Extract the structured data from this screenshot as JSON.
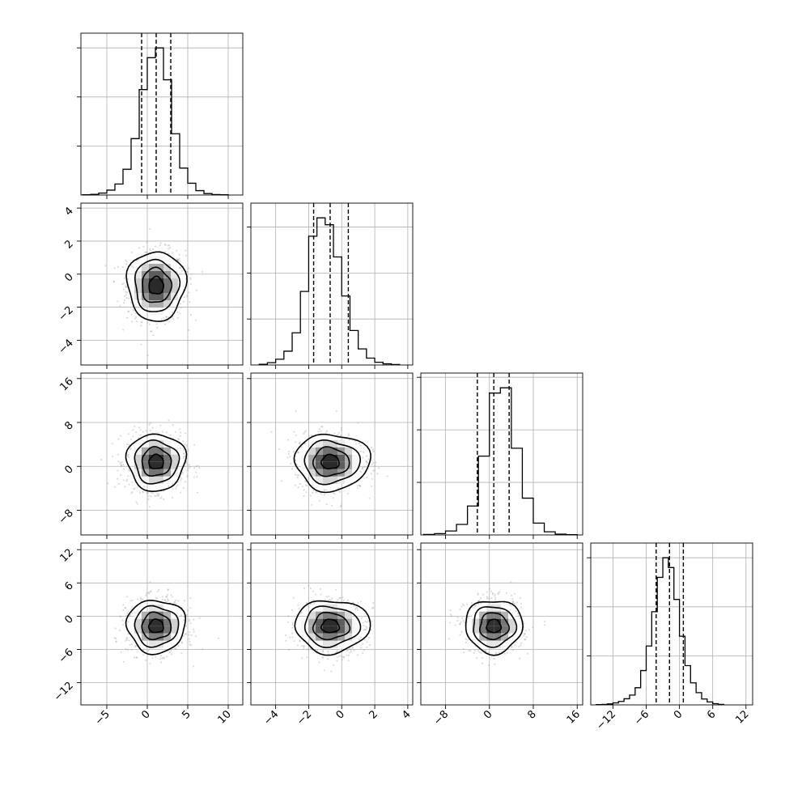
{
  "chart_data": {
    "type": "corner",
    "parameters": [
      {
        "index": 0,
        "center": 1.1,
        "sigma": 1.8,
        "quantiles": [
          -0.7,
          1.1,
          2.9
        ],
        "range": [
          -8.2,
          11.8
        ],
        "ticks": [
          -5,
          0,
          5,
          10
        ],
        "tick_labels": [
          "−5",
          "0",
          "5",
          "10"
        ]
      },
      {
        "index": 1,
        "center": -0.7,
        "sigma": 1.05,
        "quantiles": [
          -1.7,
          -0.7,
          0.4
        ],
        "range": [
          -5.5,
          4.3
        ],
        "ticks": [
          -4,
          -2,
          0,
          2,
          4
        ],
        "tick_labels": [
          "−4",
          "−2",
          "0",
          "2",
          "4"
        ]
      },
      {
        "index": 2,
        "center": 0.8,
        "sigma": 2.6,
        "quantiles": [
          -2.2,
          0.8,
          3.6
        ],
        "range": [
          -12.5,
          17.0
        ],
        "ticks": [
          -8,
          0,
          8,
          16
        ],
        "tick_labels": [
          "−8",
          "0",
          "8",
          "16"
        ]
      },
      {
        "index": 3,
        "center": -1.8,
        "sigma": 2.4,
        "quantiles": [
          -4.2,
          -1.8,
          0.7
        ],
        "range": [
          -16.0,
          13.2
        ],
        "ticks": [
          -12,
          -6,
          0,
          6,
          12
        ],
        "tick_labels": [
          "−12",
          "−6",
          "0",
          "6",
          "12"
        ]
      }
    ],
    "histograms": [
      {
        "param": 0,
        "bins": [
          -7.5,
          -6.5,
          -5.5,
          -4.5,
          -3.5,
          -2.5,
          -1.5,
          -0.5,
          0.5,
          1.5,
          2.5,
          3.5,
          4.5,
          5.5,
          6.5,
          7.5,
          8.5,
          9.5
        ],
        "counts": [
          1,
          3,
          8,
          20,
          45,
          105,
          230,
          430,
          560,
          600,
          470,
          250,
          110,
          48,
          18,
          6,
          2,
          1
        ]
      },
      {
        "param": 1,
        "bins": [
          -4.75,
          -4.25,
          -3.75,
          -3.25,
          -2.75,
          -2.25,
          -1.75,
          -1.25,
          -0.75,
          -0.25,
          0.25,
          0.75,
          1.25,
          1.75,
          2.25,
          2.75,
          3.25
        ],
        "counts": [
          3,
          10,
          25,
          60,
          140,
          320,
          560,
          640,
          610,
          470,
          300,
          150,
          70,
          30,
          12,
          5,
          2
        ]
      },
      {
        "param": 2,
        "bins": [
          -11,
          -9,
          -7,
          -5,
          -3,
          -1,
          1,
          3,
          5,
          7,
          9,
          11,
          13,
          15
        ],
        "counts": [
          2,
          5,
          15,
          40,
          110,
          300,
          540,
          560,
          330,
          140,
          45,
          12,
          3,
          1
        ]
      },
      {
        "param": 3,
        "bins": [
          -14.5,
          -13.5,
          -12.5,
          -11.5,
          -10.5,
          -9.5,
          -8.5,
          -7.5,
          -6.5,
          -5.5,
          -4.5,
          -3.5,
          -2.5,
          -1.5,
          -0.5,
          0.5,
          1.5,
          2.5,
          3.5,
          4.5,
          5.5,
          6.5,
          7.5
        ],
        "counts": [
          1,
          2,
          4,
          8,
          14,
          25,
          40,
          70,
          140,
          240,
          380,
          520,
          600,
          560,
          430,
          280,
          160,
          90,
          50,
          24,
          12,
          5,
          2
        ]
      }
    ],
    "pairs": [
      {
        "x": 0,
        "y": 1,
        "contour_scale": [
          1.0,
          1.0
        ]
      },
      {
        "x": 0,
        "y": 2,
        "contour_scale": [
          1.0,
          1.0
        ]
      },
      {
        "x": 1,
        "y": 2,
        "contour_scale": [
          1.0,
          1.0
        ]
      },
      {
        "x": 0,
        "y": 3,
        "contour_scale": [
          1.0,
          1.0
        ]
      },
      {
        "x": 1,
        "y": 3,
        "contour_scale": [
          1.0,
          1.0
        ]
      },
      {
        "x": 2,
        "y": 3,
        "contour_scale": [
          1.0,
          1.0
        ]
      }
    ],
    "contour_levels_sigma": [
      0.5,
      1.0,
      1.5,
      2.0
    ],
    "grid": true,
    "colors": {
      "frame": "#000000",
      "grid": "#b0b0b0",
      "points": "#9a9a9a",
      "hist": "#000000",
      "shade_max": "#000000"
    }
  }
}
